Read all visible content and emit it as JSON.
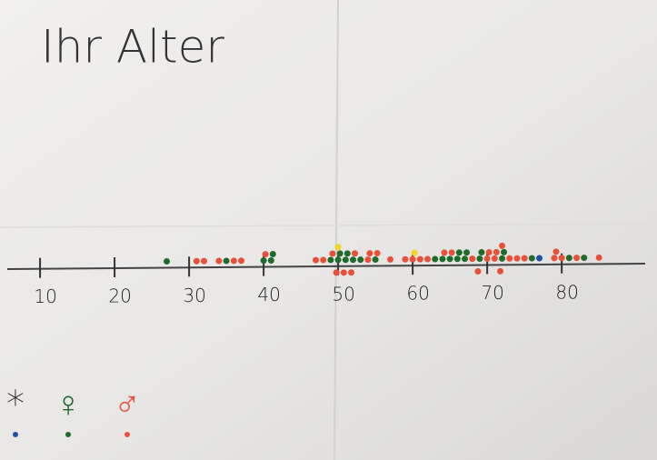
{
  "chart_data": {
    "type": "dot",
    "title": "Ihr Alter",
    "xlim": [
      5.6,
      91.2
    ],
    "xticks": [
      10,
      20,
      30,
      40,
      50,
      60,
      70,
      80
    ],
    "series": [
      {
        "name": "*",
        "color": "#1f4fa8",
        "values": [
          77
        ]
      },
      {
        "name": "♀",
        "color": "#1e6b2c",
        "values": [
          27,
          35,
          40,
          41,
          41,
          49,
          50,
          50,
          51,
          51,
          52,
          53,
          55,
          63,
          64,
          65,
          66,
          66,
          67,
          67,
          69,
          69,
          72,
          72,
          76,
          81,
          83
        ]
      },
      {
        "name": "♂",
        "color": "#e8503a",
        "values": [
          31,
          32,
          34,
          36,
          37,
          40,
          47,
          48,
          49,
          50,
          51,
          52,
          52,
          54,
          54,
          55,
          57,
          59,
          60,
          61,
          62,
          64,
          65,
          68,
          69,
          70,
          71,
          71,
          72,
          73,
          74,
          75,
          79,
          79,
          80,
          82,
          85,
          70,
          72
        ]
      },
      {
        "color": "#f2d422",
        "values": [
          50,
          60
        ]
      }
    ]
  }
}
